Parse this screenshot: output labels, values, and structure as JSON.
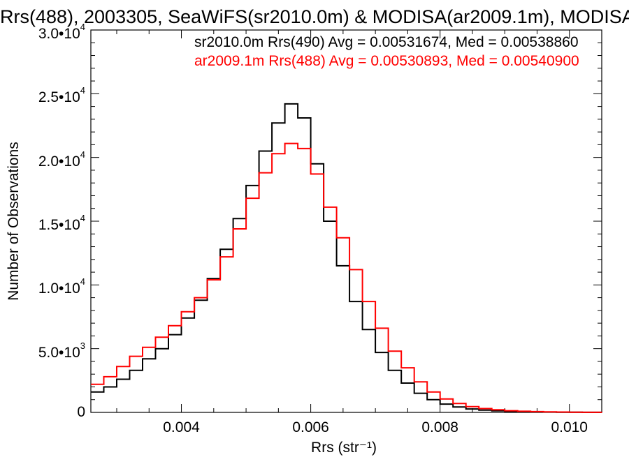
{
  "chart_data": {
    "type": "line",
    "title": "Rrs(488), 2003305, SeaWiFS(sr2010.0m) & MODISA(ar2009.1m), MODISA",
    "xlabel": "Rrs (str⁻¹)",
    "ylabel": "Number of Observations",
    "xlim": [
      0.0026,
      0.0105
    ],
    "ylim": [
      0,
      30000
    ],
    "x_ticks": [
      "0.004",
      "0.006",
      "0.008",
      "0.010"
    ],
    "y_ticks": [
      {
        "value": 0,
        "mantissa": "0",
        "exp": ""
      },
      {
        "value": 5000,
        "mantissa": "5.0•10",
        "exp": "3"
      },
      {
        "value": 10000,
        "mantissa": "1.0•10",
        "exp": "4"
      },
      {
        "value": 15000,
        "mantissa": "1.5•10",
        "exp": "4"
      },
      {
        "value": 20000,
        "mantissa": "2.0•10",
        "exp": "4"
      },
      {
        "value": 25000,
        "mantissa": "2.5•10",
        "exp": "4"
      },
      {
        "value": 30000,
        "mantissa": "3.0•10",
        "exp": "4"
      }
    ],
    "annotations": [
      "sr2010.0m Rrs(490) Avg = 0.00531674, Med = 0.00538860",
      "ar2009.1m Rrs(488) Avg = 0.00530893, Med = 0.00540900"
    ],
    "x": [
      0.0026,
      0.0028,
      0.003,
      0.0032,
      0.0034,
      0.0036,
      0.0038,
      0.004,
      0.0042,
      0.0044,
      0.0046,
      0.0048,
      0.005,
      0.0052,
      0.0054,
      0.0056,
      0.0058,
      0.006,
      0.0062,
      0.0064,
      0.0066,
      0.0068,
      0.007,
      0.0072,
      0.0074,
      0.0076,
      0.0078,
      0.008,
      0.0082,
      0.0084,
      0.0086,
      0.0088,
      0.009,
      0.0092,
      0.0094,
      0.0096,
      0.0098,
      0.01,
      0.0102,
      0.0105
    ],
    "series": [
      {
        "color": "#000000",
        "values": [
          1600,
          2000,
          2600,
          3300,
          4200,
          5000,
          6100,
          7400,
          8800,
          10500,
          12800,
          15200,
          17800,
          20500,
          22700,
          24200,
          23100,
          19500,
          15000,
          11500,
          8700,
          6500,
          4700,
          3300,
          2300,
          1500,
          1000,
          650,
          420,
          270,
          180,
          120,
          80,
          55,
          35,
          25,
          15,
          10,
          5,
          0
        ]
      },
      {
        "color": "#ff0000",
        "values": [
          2200,
          2800,
          3600,
          4400,
          5100,
          5900,
          6800,
          7900,
          9000,
          10400,
          12200,
          14400,
          16800,
          18800,
          20300,
          21100,
          20700,
          18700,
          16100,
          13700,
          11200,
          8700,
          6600,
          4800,
          3500,
          2400,
          1600,
          1050,
          700,
          450,
          300,
          200,
          130,
          90,
          60,
          40,
          25,
          15,
          8,
          0
        ]
      }
    ]
  }
}
